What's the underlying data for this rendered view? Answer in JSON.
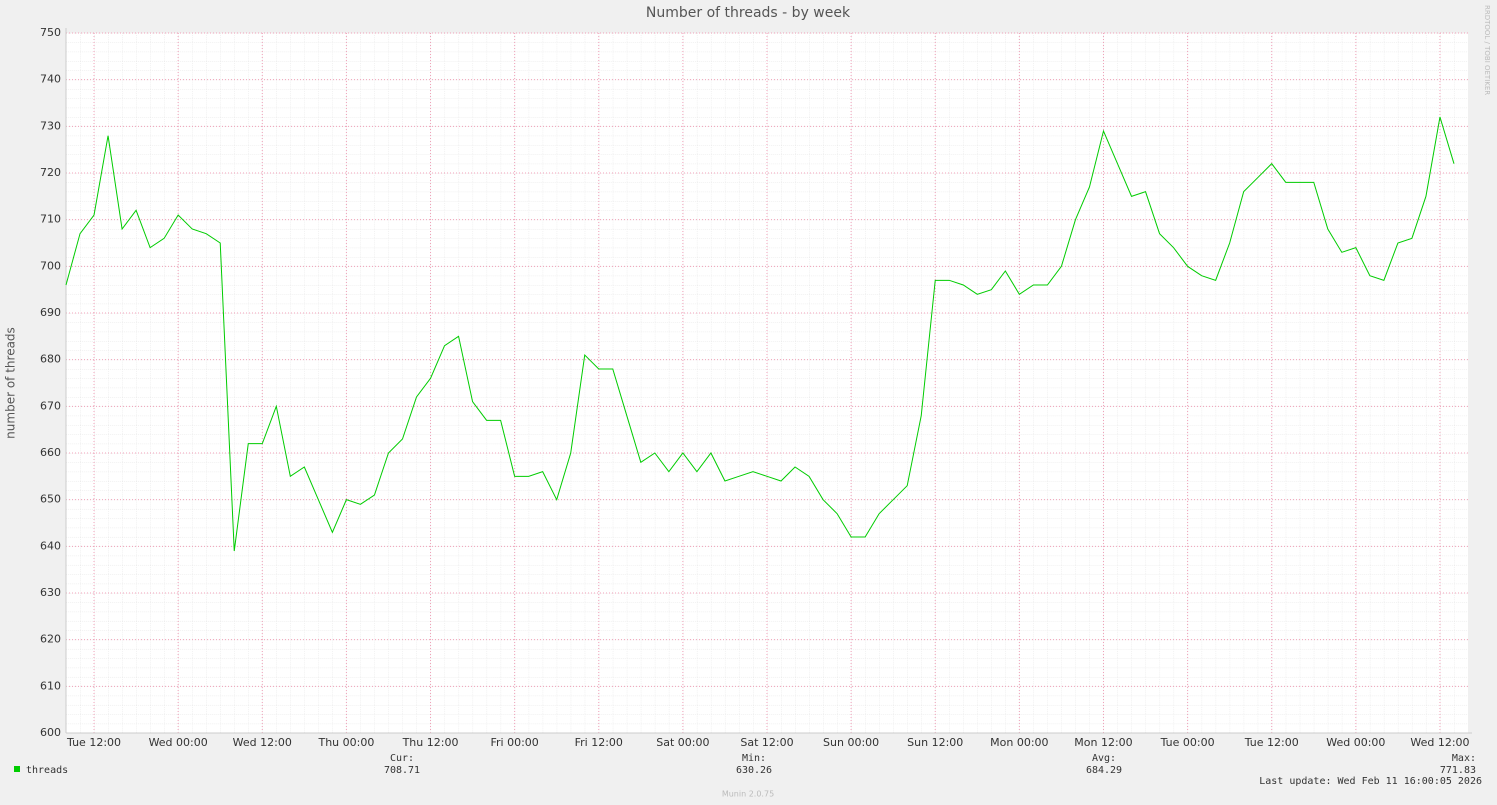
{
  "chart_data": {
    "type": "line",
    "title": "Number of threads - by week",
    "ylabel": "number of threads",
    "side_note": "RRDTOOL / TOBI OETIKER",
    "footer": "Munin 2.0.75",
    "last_update": "Last update: Wed Feb 11 16:00:05 2026",
    "categories": [
      null,
      null,
      "Tue 12:00",
      null,
      null,
      null,
      null,
      null,
      "Wed 00:00",
      null,
      null,
      null,
      null,
      null,
      "Wed 12:00",
      null,
      null,
      null,
      null,
      null,
      "Thu 00:00",
      null,
      null,
      null,
      null,
      null,
      "Thu 12:00",
      null,
      null,
      null,
      null,
      null,
      "Fri 00:00",
      null,
      null,
      null,
      null,
      null,
      "Fri 12:00",
      null,
      null,
      null,
      null,
      null,
      "Sat 00:00",
      null,
      null,
      null,
      null,
      null,
      "Sat 12:00",
      null,
      null,
      null,
      null,
      null,
      "Sun 00:00",
      null,
      null,
      null,
      null,
      null,
      "Sun 12:00",
      null,
      null,
      null,
      null,
      null,
      "Mon 00:00",
      null,
      null,
      null,
      null,
      null,
      "Mon 12:00",
      null,
      null,
      null,
      null,
      null,
      "Tue 00:00",
      null,
      null,
      null,
      null,
      null,
      "Tue 12:00",
      null,
      null,
      null,
      null,
      null,
      "Wed 00:00",
      null,
      null,
      null,
      null,
      null,
      "Wed 12:00",
      null
    ],
    "series": [
      {
        "name": "threads",
        "color": "#00cc00",
        "values": [
          696,
          707,
          711,
          728,
          708,
          712,
          704,
          706,
          711,
          708,
          707,
          705,
          639,
          662,
          662,
          670,
          655,
          657,
          650,
          643,
          650,
          649,
          651,
          660,
          663,
          672,
          676,
          683,
          685,
          671,
          667,
          667,
          655,
          655,
          656,
          650,
          660,
          681,
          678,
          678,
          668,
          658,
          660,
          656,
          660,
          656,
          660,
          654,
          655,
          656,
          655,
          654,
          657,
          655,
          650,
          647,
          642,
          642,
          647,
          650,
          653,
          668,
          697,
          697,
          696,
          694,
          695,
          699,
          694,
          696,
          696,
          700,
          710,
          717,
          729,
          722,
          715,
          716,
          707,
          704,
          700,
          698,
          697,
          705,
          716,
          719,
          722,
          718,
          718,
          718,
          708,
          703,
          704,
          698,
          697,
          705,
          706,
          715,
          732,
          722
        ]
      }
    ],
    "summary": [
      {
        "label": "Cur:",
        "value": 708.71
      },
      {
        "label": "Min:",
        "value": 630.26
      },
      {
        "label": "Avg:",
        "value": 684.29
      },
      {
        "label": "Max:",
        "value": 771.83
      }
    ],
    "ylim": [
      600,
      750
    ],
    "yticks": [
      600,
      610,
      620,
      630,
      640,
      650,
      660,
      670,
      680,
      690,
      700,
      710,
      720,
      730,
      740,
      750
    ],
    "grid": true
  }
}
